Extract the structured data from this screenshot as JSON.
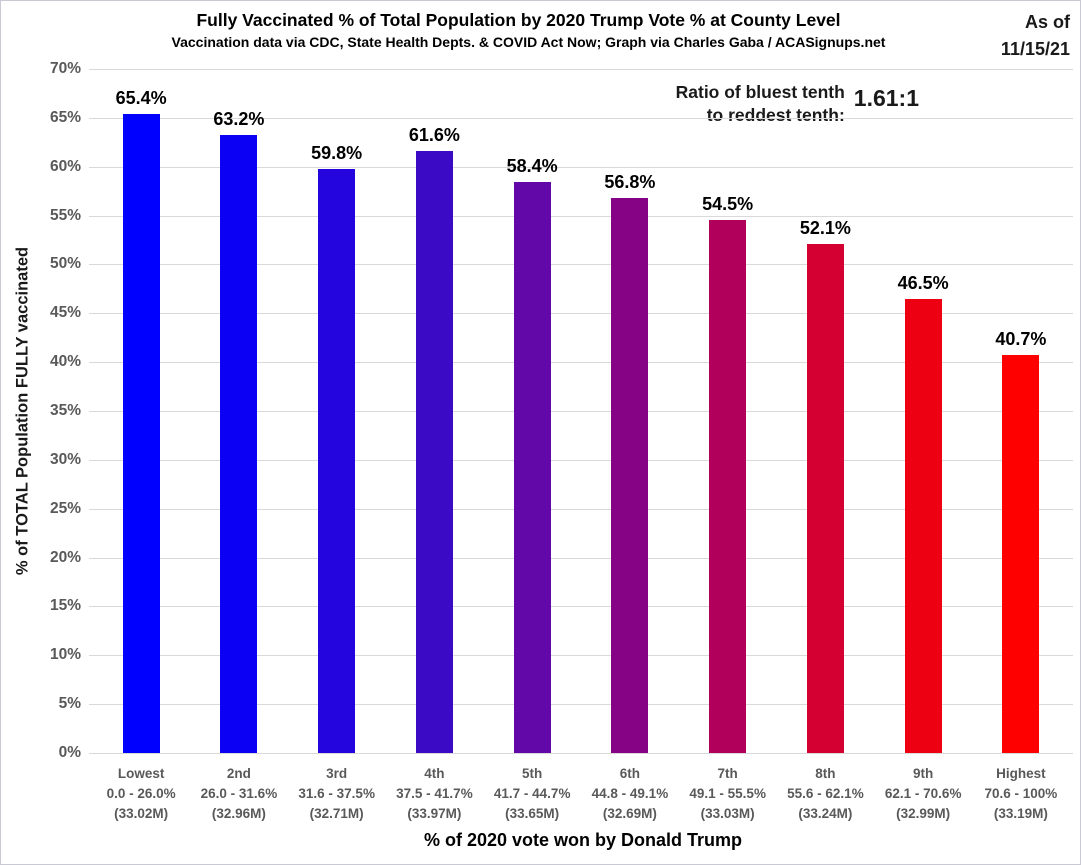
{
  "header": {
    "title": "Fully Vaccinated % of Total Population by 2020 Trump Vote % at County Level",
    "subtitle": "Vaccination data via CDC, State Health Depts. & COVID Act Now; Graph via Charles Gaba / ACASignups.net",
    "as_of_line1": "As of",
    "as_of_line2": "11/15/21"
  },
  "annotation": {
    "label_line1": "Ratio of bluest tenth",
    "label_line2": "to reddest tenth:",
    "value": "1.61:1"
  },
  "chart_data": {
    "type": "bar",
    "title": "Fully Vaccinated % of Total Population by 2020 Trump Vote % at County Level",
    "subtitle": "Vaccination data via CDC, State Health Depts. & COVID Act Now; Graph via Charles Gaba / ACASignups.net",
    "xlabel": "% of 2020 vote won by Donald Trump",
    "ylabel": "% of TOTAL Population FULLY vaccinated",
    "ylim": [
      0,
      70
    ],
    "ytick_step": 5,
    "ytick_suffix": "%",
    "grid": true,
    "legend": "none",
    "categories": [
      {
        "rank": "Lowest",
        "range": "0.0 - 26.0%",
        "population": "(33.02M)"
      },
      {
        "rank": "2nd",
        "range": "26.0 - 31.6%",
        "population": "(32.96M)"
      },
      {
        "rank": "3rd",
        "range": "31.6 - 37.5%",
        "population": "(32.71M)"
      },
      {
        "rank": "4th",
        "range": "37.5 - 41.7%",
        "population": "(33.97M)"
      },
      {
        "rank": "5th",
        "range": "41.7 - 44.7%",
        "population": "(33.65M)"
      },
      {
        "rank": "6th",
        "range": "44.8 - 49.1%",
        "population": "(32.69M)"
      },
      {
        "rank": "7th",
        "range": "49.1 - 55.5%",
        "population": "(33.03M)"
      },
      {
        "rank": "8th",
        "range": "55.6 - 62.1%",
        "population": "(33.24M)"
      },
      {
        "rank": "9th",
        "range": "62.1 - 70.6%",
        "population": "(32.99M)"
      },
      {
        "rank": "Highest",
        "range": "70.6 - 100%",
        "population": "(33.19M)"
      }
    ],
    "values": [
      65.4,
      63.2,
      59.8,
      61.6,
      58.4,
      56.8,
      54.5,
      52.1,
      46.5,
      40.7
    ],
    "value_labels": [
      "65.4%",
      "63.2%",
      "59.8%",
      "61.6%",
      "58.4%",
      "56.8%",
      "54.5%",
      "52.1%",
      "46.5%",
      "40.7%"
    ],
    "bar_colors": [
      "#0000ff",
      "#0b00f4",
      "#2405dd",
      "#3a0ac5",
      "#6207a8",
      "#850384",
      "#b0005c",
      "#d40032",
      "#ee0013",
      "#ff0000"
    ],
    "gridline_color": "#d9d9d9",
    "tick_label_color": "#595959"
  }
}
